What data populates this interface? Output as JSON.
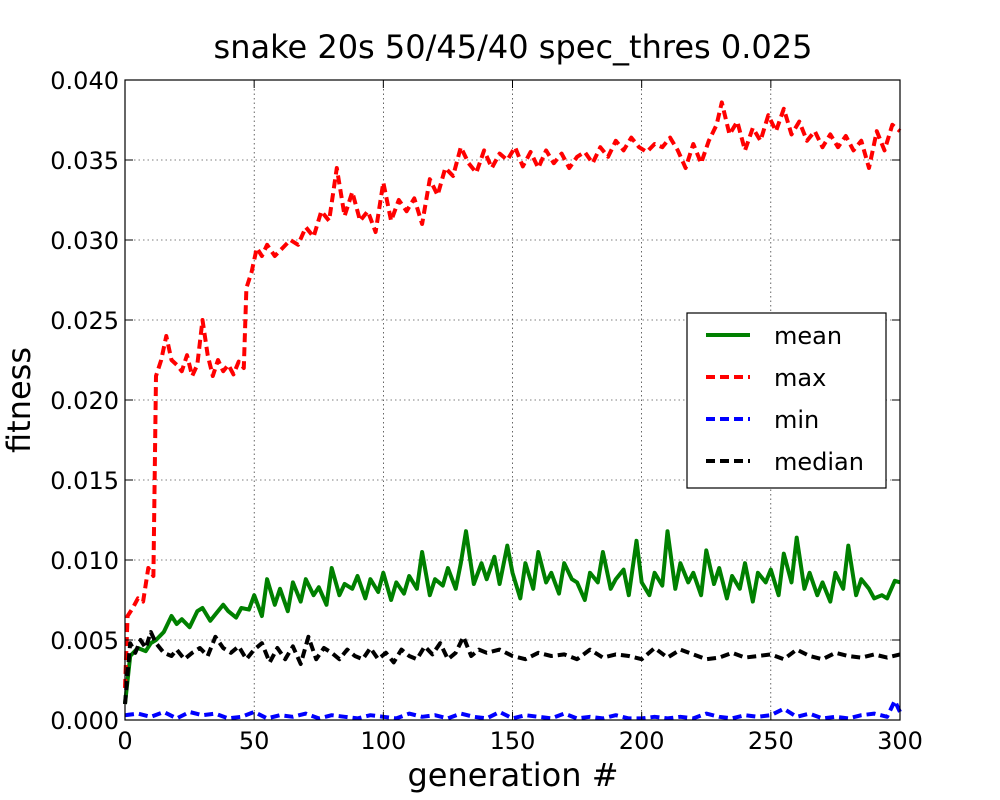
{
  "chart_data": {
    "type": "line",
    "title": "snake 20s 50/45/40 spec_thres 0.025",
    "xlabel": "generation #",
    "ylabel": "fitness",
    "xlim": [
      0,
      300
    ],
    "ylim": [
      0,
      0.04
    ],
    "xticks": [
      "0",
      "50",
      "100",
      "150",
      "200",
      "250",
      "300"
    ],
    "yticks": [
      "0.000",
      "0.005",
      "0.010",
      "0.015",
      "0.020",
      "0.025",
      "0.030",
      "0.035",
      "0.040"
    ],
    "grid": true,
    "legend_position": "right",
    "series": [
      {
        "name": "mean",
        "color": "#008000",
        "dash": "solid",
        "x": [
          0,
          2,
          5,
          8,
          10,
          12,
          15,
          18,
          20,
          22,
          25,
          28,
          30,
          33,
          35,
          38,
          40,
          43,
          45,
          48,
          50,
          53,
          55,
          58,
          60,
          63,
          65,
          68,
          70,
          73,
          75,
          78,
          80,
          83,
          85,
          88,
          90,
          93,
          95,
          98,
          100,
          103,
          105,
          108,
          110,
          113,
          115,
          118,
          120,
          123,
          125,
          128,
          130,
          132,
          135,
          138,
          140,
          143,
          145,
          148,
          150,
          153,
          155,
          158,
          160,
          163,
          165,
          168,
          170,
          173,
          175,
          178,
          180,
          183,
          185,
          188,
          190,
          193,
          195,
          198,
          200,
          203,
          205,
          208,
          210,
          213,
          215,
          218,
          220,
          223,
          225,
          228,
          230,
          233,
          235,
          238,
          240,
          243,
          245,
          248,
          250,
          253,
          255,
          258,
          260,
          263,
          265,
          268,
          270,
          273,
          275,
          278,
          280,
          283,
          285,
          288,
          290,
          293,
          295,
          298,
          300
        ],
        "y": [
          0.001,
          0.004,
          0.0045,
          0.0043,
          0.0048,
          0.005,
          0.0055,
          0.0065,
          0.006,
          0.0063,
          0.0058,
          0.0068,
          0.007,
          0.0062,
          0.0066,
          0.0072,
          0.0068,
          0.0064,
          0.007,
          0.0069,
          0.0078,
          0.0065,
          0.0088,
          0.0072,
          0.0082,
          0.0068,
          0.0086,
          0.0074,
          0.0088,
          0.0078,
          0.0083,
          0.0072,
          0.0095,
          0.0078,
          0.0085,
          0.0082,
          0.009,
          0.0076,
          0.0088,
          0.008,
          0.0092,
          0.0075,
          0.0086,
          0.0079,
          0.009,
          0.0082,
          0.0105,
          0.0078,
          0.0088,
          0.0084,
          0.0095,
          0.0082,
          0.0098,
          0.0118,
          0.0085,
          0.0098,
          0.0088,
          0.0102,
          0.0085,
          0.0109,
          0.0092,
          0.0076,
          0.0098,
          0.0082,
          0.0105,
          0.0086,
          0.0092,
          0.0079,
          0.0098,
          0.0088,
          0.0086,
          0.0075,
          0.0092,
          0.0086,
          0.0105,
          0.0082,
          0.0088,
          0.0094,
          0.0078,
          0.0112,
          0.0086,
          0.0078,
          0.0092,
          0.0084,
          0.0118,
          0.0082,
          0.0098,
          0.0086,
          0.0092,
          0.0078,
          0.0106,
          0.0085,
          0.0095,
          0.0076,
          0.009,
          0.0082,
          0.0098,
          0.0074,
          0.0092,
          0.0086,
          0.0094,
          0.0078,
          0.0104,
          0.0086,
          0.0114,
          0.0082,
          0.0092,
          0.0078,
          0.0086,
          0.0074,
          0.0092,
          0.0082,
          0.0109,
          0.0078,
          0.0088,
          0.0082,
          0.0076,
          0.0078,
          0.0076,
          0.0087,
          0.0086
        ]
      },
      {
        "name": "max",
        "color": "#ff0000",
        "dash": "dashed",
        "x": [
          0,
          1,
          3,
          5,
          7,
          9,
          11,
          12,
          14,
          16,
          18,
          20,
          22,
          24,
          26,
          28,
          30,
          32,
          34,
          36,
          38,
          40,
          42,
          44,
          46,
          47,
          49,
          51,
          53,
          55,
          58,
          61,
          64,
          67,
          70,
          73,
          76,
          79,
          82,
          85,
          88,
          91,
          94,
          97,
          100,
          103,
          106,
          109,
          112,
          115,
          118,
          121,
          124,
          127,
          130,
          133,
          136,
          139,
          142,
          145,
          148,
          151,
          154,
          157,
          160,
          163,
          166,
          169,
          172,
          175,
          178,
          181,
          184,
          187,
          190,
          193,
          196,
          199,
          202,
          205,
          208,
          211,
          214,
          217,
          220,
          223,
          226,
          229,
          231,
          234,
          237,
          240,
          243,
          246,
          249,
          252,
          255,
          258,
          261,
          264,
          267,
          270,
          273,
          276,
          279,
          282,
          285,
          288,
          291,
          294,
          297,
          300
        ],
        "y": [
          0.002,
          0.0065,
          0.007,
          0.0076,
          0.0074,
          0.0095,
          0.009,
          0.0215,
          0.0225,
          0.024,
          0.0225,
          0.0222,
          0.0218,
          0.0228,
          0.0215,
          0.0222,
          0.025,
          0.0228,
          0.0215,
          0.0225,
          0.0218,
          0.0222,
          0.0216,
          0.0224,
          0.022,
          0.027,
          0.028,
          0.0295,
          0.029,
          0.0297,
          0.029,
          0.0295,
          0.03,
          0.0297,
          0.0308,
          0.0302,
          0.0318,
          0.0312,
          0.0345,
          0.0315,
          0.033,
          0.0312,
          0.0318,
          0.0305,
          0.0336,
          0.0312,
          0.0325,
          0.0318,
          0.0326,
          0.031,
          0.0338,
          0.0328,
          0.0345,
          0.034,
          0.0358,
          0.0348,
          0.0342,
          0.0356,
          0.0345,
          0.0354,
          0.035,
          0.0358,
          0.0346,
          0.0355,
          0.0345,
          0.0356,
          0.0348,
          0.0354,
          0.0345,
          0.0352,
          0.0355,
          0.0348,
          0.0358,
          0.0352,
          0.0362,
          0.0356,
          0.0364,
          0.0358,
          0.0355,
          0.036,
          0.0358,
          0.0364,
          0.0356,
          0.0345,
          0.036,
          0.0348,
          0.0362,
          0.0372,
          0.0386,
          0.0366,
          0.0374,
          0.0356,
          0.037,
          0.0362,
          0.0378,
          0.0368,
          0.0382,
          0.0366,
          0.0374,
          0.0362,
          0.0368,
          0.0358,
          0.0366,
          0.0358,
          0.0365,
          0.0356,
          0.0362,
          0.0345,
          0.0368,
          0.0356,
          0.0372,
          0.0368
        ]
      },
      {
        "name": "min",
        "color": "#0000ff",
        "dash": "dashed",
        "x": [
          0,
          5,
          10,
          15,
          20,
          25,
          30,
          35,
          40,
          45,
          50,
          55,
          60,
          65,
          70,
          75,
          80,
          85,
          90,
          95,
          100,
          105,
          110,
          115,
          120,
          125,
          130,
          135,
          140,
          145,
          150,
          155,
          160,
          165,
          170,
          175,
          180,
          185,
          190,
          195,
          200,
          205,
          210,
          215,
          220,
          225,
          230,
          235,
          240,
          245,
          250,
          255,
          260,
          265,
          270,
          275,
          280,
          285,
          290,
          295,
          298,
          300
        ],
        "y": [
          0.0003,
          0.0004,
          0.0002,
          0.0005,
          0.0001,
          0.0005,
          0.0003,
          0.0004,
          0.0001,
          0.0002,
          0.0005,
          0.0001,
          0.0003,
          0.0002,
          0.0004,
          0.0001,
          0.0003,
          0.0002,
          0.0001,
          0.0003,
          0.0002,
          0.0001,
          0.0004,
          0.0002,
          0.0003,
          0.0001,
          0.0004,
          0.0002,
          0.0001,
          0.0005,
          0.0001,
          0.0003,
          0.0002,
          0.0001,
          0.0004,
          0.0001,
          0.0002,
          0.0001,
          0.0003,
          0.0001,
          0.0001,
          0.0002,
          0.0001,
          0.0002,
          0.0001,
          0.0004,
          0.0002,
          0.0001,
          0.0003,
          0.0002,
          0.0003,
          0.0007,
          0.0002,
          0.0004,
          0.0001,
          0.0002,
          0.0001,
          0.0003,
          0.0004,
          0.0002,
          0.0012,
          0.0005
        ]
      },
      {
        "name": "median",
        "color": "#000000",
        "dash": "dashed",
        "x": [
          0,
          2,
          4,
          6,
          8,
          10,
          12,
          15,
          18,
          20,
          23,
          26,
          29,
          32,
          35,
          38,
          41,
          44,
          47,
          50,
          53,
          56,
          59,
          62,
          65,
          68,
          71,
          74,
          77,
          80,
          83,
          86,
          89,
          92,
          95,
          98,
          101,
          104,
          107,
          110,
          113,
          116,
          119,
          122,
          125,
          128,
          131,
          134,
          137,
          140,
          145,
          150,
          155,
          160,
          165,
          170,
          175,
          180,
          185,
          190,
          195,
          200,
          205,
          210,
          215,
          220,
          225,
          230,
          235,
          240,
          245,
          250,
          255,
          260,
          265,
          270,
          275,
          280,
          285,
          290,
          295,
          300
        ],
        "y": [
          0.001,
          0.0048,
          0.0042,
          0.005,
          0.0045,
          0.0055,
          0.0048,
          0.0042,
          0.004,
          0.0044,
          0.0038,
          0.0042,
          0.0045,
          0.004,
          0.0052,
          0.0045,
          0.0042,
          0.0046,
          0.0038,
          0.0044,
          0.0048,
          0.0036,
          0.0045,
          0.0038,
          0.0046,
          0.0035,
          0.0052,
          0.0038,
          0.0045,
          0.0042,
          0.0038,
          0.0044,
          0.004,
          0.0038,
          0.0045,
          0.0038,
          0.0042,
          0.0036,
          0.0044,
          0.004,
          0.0038,
          0.0046,
          0.0041,
          0.0048,
          0.0038,
          0.0042,
          0.0052,
          0.004,
          0.0044,
          0.0042,
          0.0044,
          0.004,
          0.0038,
          0.0042,
          0.004,
          0.0041,
          0.0038,
          0.0044,
          0.0039,
          0.0041,
          0.004,
          0.0038,
          0.0045,
          0.0039,
          0.0044,
          0.0041,
          0.0038,
          0.0039,
          0.0042,
          0.0039,
          0.004,
          0.0041,
          0.0038,
          0.0044,
          0.004,
          0.0038,
          0.0042,
          0.004,
          0.0039,
          0.0041,
          0.0039,
          0.0041
        ]
      }
    ]
  }
}
